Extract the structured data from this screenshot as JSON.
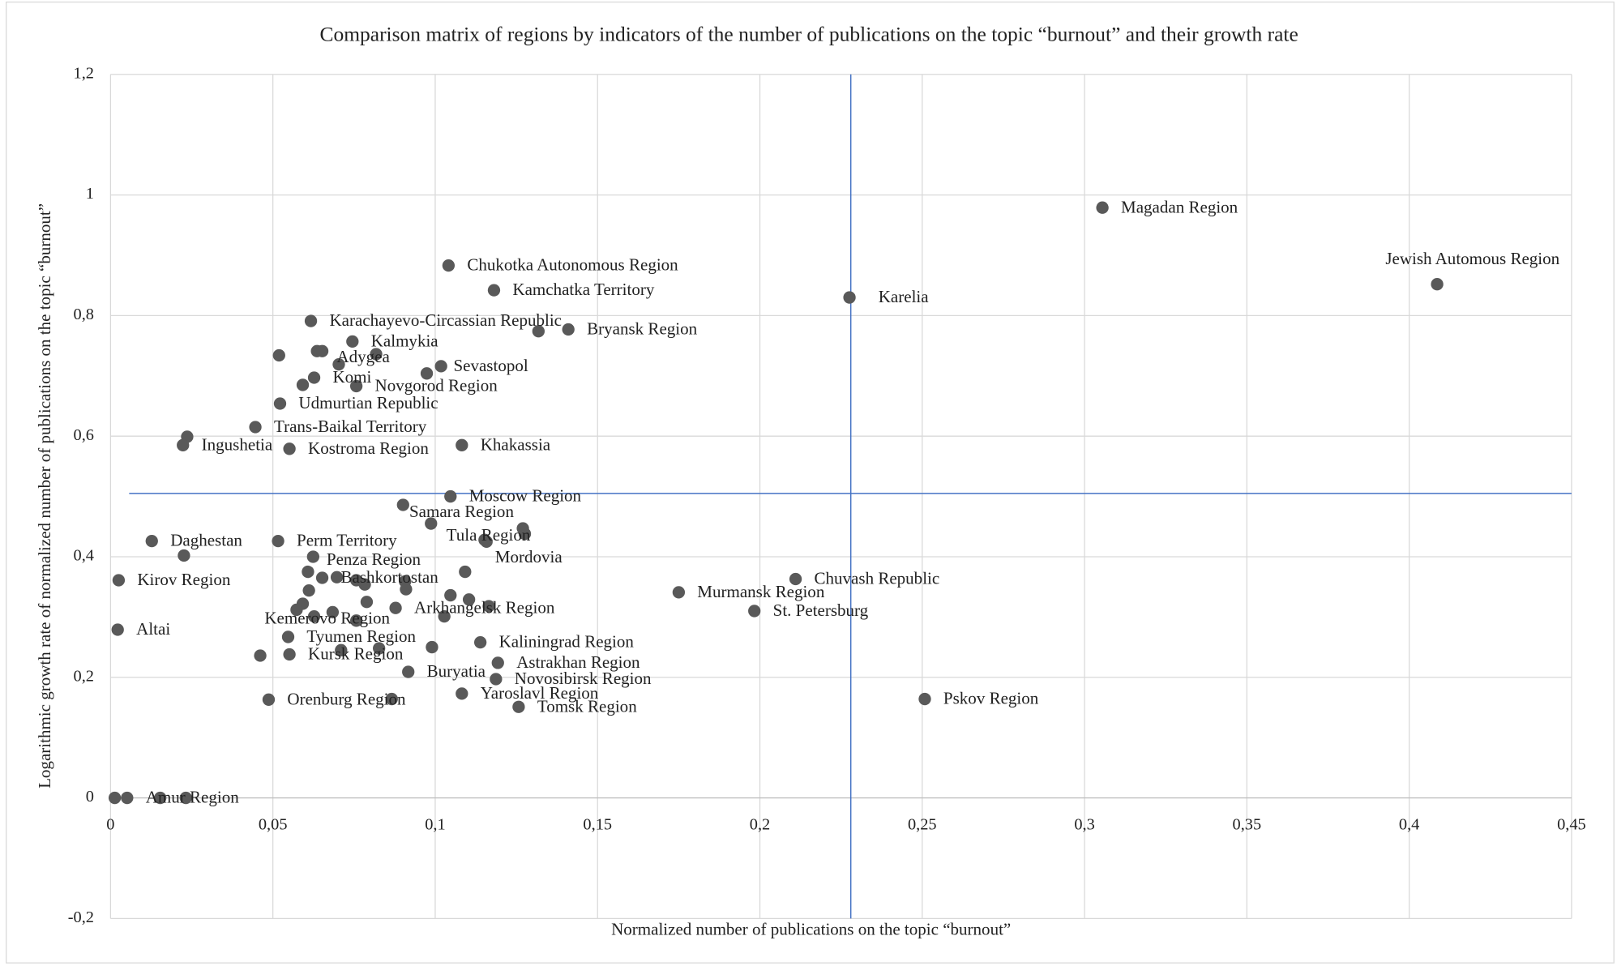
{
  "chart_data": {
    "type": "scatter",
    "title": "Comparison matrix of regions by indicators of the number of publications on the topic “burnout”  and their growth rate",
    "x_label": "Normalized number of publications on the topic “burnout”",
    "y_label": "Logarithmic growth rate of normalized number of publications on the topic “burnout”",
    "color": "#595959",
    "line_color": "#4472c4",
    "grid": true,
    "xlim": [
      0,
      0.45
    ],
    "ylim": [
      -0.2,
      1.2
    ],
    "xticks": [
      0,
      {
        "value": 0.05,
        "label": "0,05"
      },
      {
        "value": 0.1,
        "label": "0,1"
      },
      {
        "value": 0.15,
        "label": "0,15"
      },
      {
        "value": 0.2,
        "label": "0,2"
      },
      {
        "value": 0.25,
        "label": "0,25"
      },
      {
        "value": 0.3,
        "label": "0,3"
      },
      {
        "value": 0.35,
        "label": "0,35"
      },
      {
        "value": 0.4,
        "label": "0,4"
      },
      {
        "value": 0.45,
        "label": "0,45"
      }
    ],
    "yticks": [
      {
        "value": -0.2,
        "label": "-0,2"
      },
      0,
      {
        "value": 0.2,
        "label": "0,2"
      },
      {
        "value": 0.4,
        "label": "0,4"
      },
      {
        "value": 0.6,
        "label": "0,6"
      },
      {
        "value": 0.8,
        "label": "0,8"
      },
      1,
      {
        "value": 1.2,
        "label": "1,2"
      }
    ],
    "x_reference": 0.228,
    "y_reference": 0.505,
    "x": [
      0.3055,
      0.4086,
      0.2276,
      0.1041,
      0.1181,
      0.0617,
      0.141,
      0.1318,
      0.0745,
      0.0818,
      0.0519,
      0.0636,
      0.0652,
      0.0703,
      0.1018,
      0.0974,
      0.0627,
      0.0592,
      0.0757,
      0.0522,
      0.0446,
      0.0236,
      0.0223,
      0.0551,
      0.1082,
      0.1047,
      0.0901,
      0.0987,
      0.127,
      0.1276,
      0.1152,
      0.1158,
      0.0127,
      0.0516,
      0.0226,
      0.1092,
      0.0624,
      0.0608,
      0.0025,
      0.0652,
      0.0697,
      0.0757,
      0.0783,
      0.0907,
      0.091,
      0.0611,
      0.211,
      0.175,
      0.1983,
      0.1047,
      0.0789,
      0.1104,
      0.1165,
      0.0878,
      0.0592,
      0.0573,
      0.0684,
      0.0627,
      0.0757,
      0.1028,
      0.0022,
      0.1139,
      0.0547,
      0.071,
      0.0827,
      0.099,
      0.0461,
      0.0551,
      0.1193,
      0.0917,
      0.1187,
      0.1082,
      0.1257,
      0.0487,
      0.0866,
      0.2508,
      0.0013,
      0.0051,
      0.0153,
      0.0232
    ],
    "y": [
      0.979,
      0.852,
      0.83,
      0.883,
      0.842,
      0.791,
      0.777,
      0.774,
      0.757,
      0.736,
      0.734,
      0.741,
      0.741,
      0.719,
      0.716,
      0.704,
      0.697,
      0.685,
      0.683,
      0.654,
      0.615,
      0.599,
      0.585,
      0.579,
      0.585,
      0.5,
      0.486,
      0.455,
      0.447,
      0.438,
      0.428,
      0.425,
      0.426,
      0.426,
      0.402,
      0.375,
      0.4,
      0.375,
      0.361,
      0.365,
      0.366,
      0.361,
      0.354,
      0.359,
      0.346,
      0.344,
      0.363,
      0.341,
      0.31,
      0.336,
      0.325,
      0.329,
      0.318,
      0.315,
      0.322,
      0.312,
      0.308,
      0.301,
      0.294,
      0.301,
      0.279,
      0.258,
      0.267,
      0.245,
      0.248,
      0.25,
      0.236,
      0.238,
      0.224,
      0.209,
      0.197,
      0.173,
      0.151,
      0.163,
      0.164,
      0.164,
      0,
      0,
      0,
      0
    ],
    "labels": [
      "Magadan Region",
      "Jewish Automous Region",
      "Karelia",
      "Chukotka Autonomous Region",
      "Kamchatka Territory",
      "Karachayevo-Circassian Republic",
      "Bryansk Region",
      null,
      "Kalmykia",
      null,
      null,
      null,
      null,
      "Adygea",
      "Sevastopol",
      null,
      "Komi",
      null,
      "Novgorod Region",
      "Udmurtian Republic",
      "Trans-Baikal Territory",
      null,
      "Ingushetia",
      "Kostroma Region",
      "Khakassia",
      "Moscow Region",
      null,
      "Samara Region",
      null,
      null,
      "Tula Region",
      null,
      "Daghestan",
      "Perm Territory",
      null,
      "Mordovia",
      "Penza Region",
      null,
      "Kirov Region",
      "Bashkortostan",
      null,
      null,
      null,
      null,
      null,
      null,
      "Chuvash Republic",
      "Murmansk Region",
      "St. Petersburg",
      null,
      null,
      null,
      null,
      "Arkhangelsk Region",
      null,
      null,
      null,
      "Kemerovo Region",
      null,
      null,
      "Altai",
      "Kaliningrad Region",
      "Tyumen Region",
      null,
      null,
      null,
      null,
      "Kursk Region",
      "Astrakhan Region",
      "Buryatia",
      "Novosibirsk Region",
      "Yaroslavl Region",
      "Tomsk Region",
      "Orenburg Region",
      null,
      "Pskov Region",
      null,
      "Amur Region",
      null,
      null
    ]
  }
}
